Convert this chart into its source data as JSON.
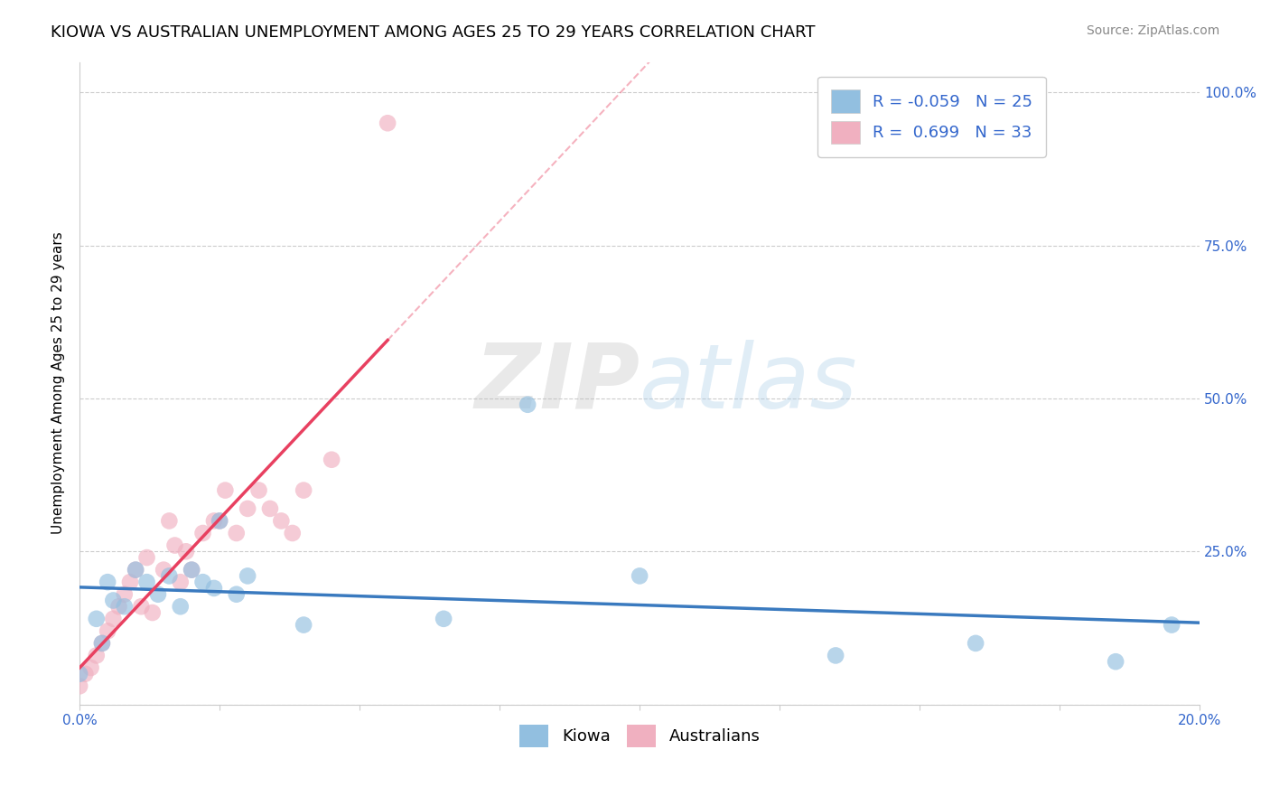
{
  "title": "KIOWA VS AUSTRALIAN UNEMPLOYMENT AMONG AGES 25 TO 29 YEARS CORRELATION CHART",
  "source": "Source: ZipAtlas.com",
  "ylabel": "Unemployment Among Ages 25 to 29 years",
  "xlim": [
    0.0,
    0.2
  ],
  "ylim": [
    0.0,
    1.05
  ],
  "grid_color": "#cccccc",
  "background_color": "#ffffff",
  "kiowa_color": "#92bfe0",
  "australian_color": "#f0b0c0",
  "kiowa_line_color": "#3a7abf",
  "australian_line_color": "#e84060",
  "legend_R_kiowa": "-0.059",
  "legend_N_kiowa": "25",
  "legend_R_australian": "0.699",
  "legend_N_australian": "33",
  "kiowa_x": [
    0.0,
    0.003,
    0.004,
    0.005,
    0.006,
    0.008,
    0.01,
    0.012,
    0.014,
    0.016,
    0.018,
    0.02,
    0.022,
    0.024,
    0.025,
    0.028,
    0.03,
    0.04,
    0.065,
    0.08,
    0.1,
    0.135,
    0.16,
    0.185,
    0.195
  ],
  "kiowa_y": [
    0.05,
    0.14,
    0.1,
    0.2,
    0.17,
    0.16,
    0.22,
    0.2,
    0.18,
    0.21,
    0.16,
    0.22,
    0.2,
    0.19,
    0.3,
    0.18,
    0.21,
    0.13,
    0.14,
    0.49,
    0.21,
    0.08,
    0.1,
    0.07,
    0.13
  ],
  "australian_x": [
    0.0,
    0.001,
    0.002,
    0.003,
    0.004,
    0.005,
    0.006,
    0.007,
    0.008,
    0.009,
    0.01,
    0.011,
    0.012,
    0.013,
    0.015,
    0.016,
    0.017,
    0.018,
    0.019,
    0.02,
    0.022,
    0.024,
    0.025,
    0.026,
    0.028,
    0.03,
    0.032,
    0.034,
    0.036,
    0.038,
    0.04,
    0.045,
    0.055
  ],
  "australian_y": [
    0.03,
    0.05,
    0.06,
    0.08,
    0.1,
    0.12,
    0.14,
    0.16,
    0.18,
    0.2,
    0.22,
    0.16,
    0.24,
    0.15,
    0.22,
    0.3,
    0.26,
    0.2,
    0.25,
    0.22,
    0.28,
    0.3,
    0.3,
    0.35,
    0.28,
    0.32,
    0.35,
    0.32,
    0.3,
    0.28,
    0.35,
    0.4,
    0.95
  ],
  "watermark_zip": "ZIP",
  "watermark_atlas": "atlas",
  "title_fontsize": 13,
  "axis_label_fontsize": 11,
  "tick_fontsize": 11,
  "legend_fontsize": 13,
  "source_fontsize": 10
}
